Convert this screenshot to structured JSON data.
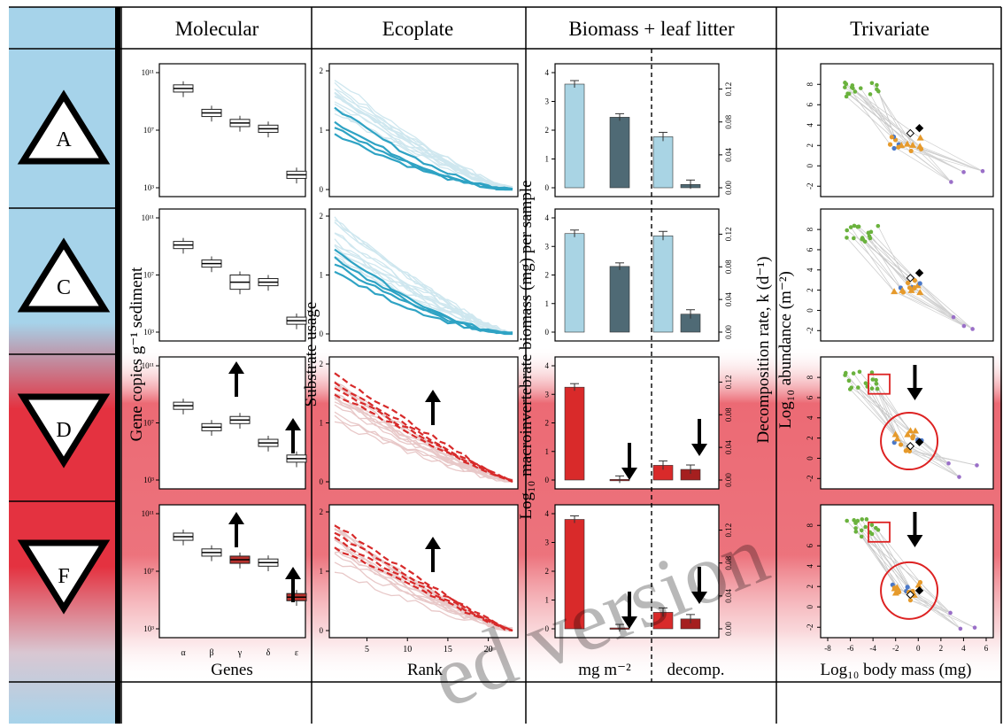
{
  "headers": {
    "molecular": "Molecular",
    "ecoplate": "Ecoplate",
    "biomass": "Biomass + leaf litter",
    "trivariate": "Trivariate"
  },
  "rows": [
    {
      "letter": "A",
      "direction": "up"
    },
    {
      "letter": "C",
      "direction": "up"
    },
    {
      "letter": "D",
      "direction": "down"
    },
    {
      "letter": "F",
      "direction": "down"
    }
  ],
  "axis_labels": {
    "molecular_y": "Gene copies g⁻¹ sediment",
    "molecular_x": "Genes",
    "ecoplate_y": "Substrate usage",
    "ecoplate_x": "Rank",
    "biomass_y": "Log₁₀ macroinvertebrate biomass (mg) per sample",
    "decomp_y": "Decomposition rate, k (d⁻¹)",
    "biomass_x1": "mg m⁻²",
    "biomass_x2": "decomp.",
    "tri_y": "Log₁₀ abundance (m⁻²)",
    "tri_x": "Log₁₀ body mass (mg)"
  },
  "ticks": {
    "molecular_y": [
      "10¹¹",
      "10⁷",
      "10³"
    ],
    "genes": [
      "α",
      "β",
      "γ",
      "δ",
      "ε"
    ],
    "ecoplate_y": [
      "2",
      "1",
      "0"
    ],
    "rank": [
      "5",
      "10",
      "15",
      "20"
    ],
    "biomass_y": [
      "4",
      "3",
      "2",
      "1",
      "0"
    ],
    "decomp_y": [
      "0.12",
      "0.08",
      "0.04",
      "0.00"
    ],
    "tri_y": [
      "8",
      "6",
      "4",
      "2",
      "0",
      "-2"
    ],
    "tri_x": [
      "-8",
      "-6",
      "-4",
      "-2",
      "0",
      "2",
      "4",
      "6"
    ]
  },
  "watermark": "ed version",
  "colors": {
    "sidebar_blue": "#a6d3ea",
    "impact_red": "#e43240",
    "eco_blue": "#2fa3c4",
    "eco_red": "#d72a2a",
    "bar_light": "#a9d4e4",
    "bar_dark": "#4f6a75",
    "bar_red": "#d92a2a",
    "pt_green": "#6ab23d",
    "pt_orange": "#e69a2b",
    "pt_purple": "#9a6fc8"
  },
  "chart_data": [
    {
      "type": "box",
      "panel": "Molecular",
      "categories": [
        "α",
        "β",
        "γ",
        "δ",
        "ε"
      ],
      "ylabel": "Gene copies g⁻¹ sediment",
      "xlabel": "Genes",
      "yscale": "log10",
      "ylim": [
        3,
        11
      ],
      "rows": [
        {
          "row": "A",
          "medians_log10": [
            9.9,
            8.2,
            7.5,
            7.1,
            3.9
          ],
          "highlight": []
        },
        {
          "row": "C",
          "medians_log10": [
            9.1,
            7.8,
            6.5,
            6.5,
            3.8
          ],
          "highlight": []
        },
        {
          "row": "D",
          "medians_log10": [
            8.2,
            6.7,
            7.2,
            5.6,
            4.5
          ],
          "highlight": [
            "γ",
            "ε"
          ]
        },
        {
          "row": "F",
          "medians_log10": [
            9.4,
            8.3,
            7.8,
            7.6,
            5.2
          ],
          "highlight": [
            "γ",
            "ε"
          ]
        }
      ]
    },
    {
      "type": "line",
      "panel": "Ecoplate",
      "xlabel": "Rank",
      "ylabel": "Substrate usage",
      "xlim": [
        1,
        23
      ],
      "ylim": [
        0,
        2
      ],
      "rows": [
        {
          "row": "A",
          "highlight_start": [
            1.4,
            1.15,
            1.05,
            0.95
          ]
        },
        {
          "row": "C",
          "highlight_start": [
            1.45,
            1.3,
            1.2,
            1.05
          ]
        },
        {
          "row": "D",
          "highlight_start": [
            1.85,
            1.7,
            1.6,
            1.5
          ]
        },
        {
          "row": "F",
          "highlight_start": [
            1.8,
            1.65,
            1.55,
            1.4
          ]
        }
      ]
    },
    {
      "type": "bar",
      "panel": "Biomass + leaf litter",
      "ylabel": "Log₁₀ macroinvertebrate biomass (mg) per sample",
      "ylabel_right": "Decomposition rate, k (d⁻¹)",
      "ylim": [
        0,
        4
      ],
      "ylim_right": [
        0,
        0.14
      ],
      "rows": [
        {
          "row": "A",
          "biomass": [
            3.6,
            2.45
          ],
          "decomp": [
            0.062,
            0.004
          ]
        },
        {
          "row": "C",
          "biomass": [
            3.45,
            2.3
          ],
          "decomp": [
            0.118,
            0.022
          ]
        },
        {
          "row": "D",
          "biomass": [
            3.25,
            0.02
          ],
          "decomp": [
            0.018,
            0.013
          ]
        },
        {
          "row": "F",
          "biomass": [
            3.8,
            0.03
          ],
          "decomp": [
            0.02,
            0.012
          ]
        }
      ]
    },
    {
      "type": "scatter",
      "panel": "Trivariate",
      "xlabel": "Log₁₀ body mass (mg)",
      "ylabel": "Log₁₀ abundance (m⁻²)",
      "xlim": [
        -8,
        6
      ],
      "ylim": [
        -2.5,
        9.5
      ]
    }
  ]
}
